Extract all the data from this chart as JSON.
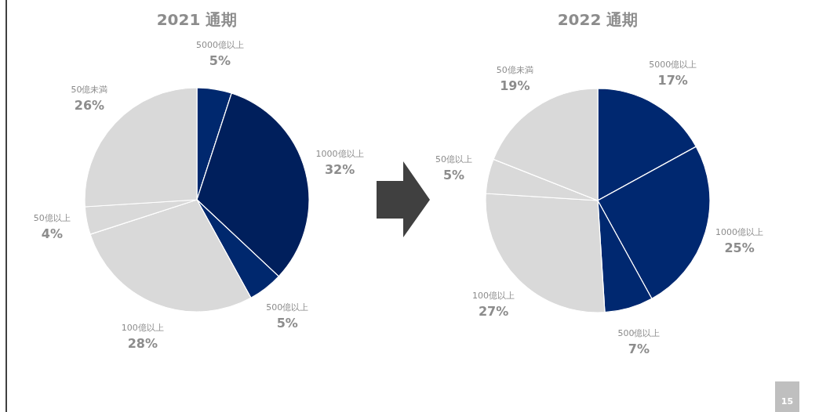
{
  "chart_data": [
    {
      "type": "pie",
      "title": "2021 通期",
      "categories": [
        "5000億以上",
        "1000億以上",
        "500億以上",
        "100億以上",
        "50億以上",
        "50億未満"
      ],
      "values": [
        5,
        32,
        5,
        28,
        4,
        26
      ],
      "value_labels": [
        "5%",
        "32%",
        "5%",
        "28%",
        "4%",
        "26%"
      ],
      "colors": [
        "#00286e",
        "#001f5c",
        "#00286e",
        "#d9d9d9",
        "#d9d9d9",
        "#d9d9d9"
      ]
    },
    {
      "type": "pie",
      "title": "2022 通期",
      "categories": [
        "5000億以上",
        "1000億以上",
        "500億以上",
        "100億以上",
        "50億以上",
        "50億未満"
      ],
      "values": [
        17,
        25,
        7,
        27,
        5,
        19
      ],
      "value_labels": [
        "17%",
        "25%",
        "7%",
        "27%",
        "5%",
        "19%"
      ],
      "colors": [
        "#002870",
        "#002870",
        "#002870",
        "#d9d9d9",
        "#d9d9d9",
        "#d9d9d9"
      ],
      "annotations": [
        "15"
      ]
    }
  ]
}
